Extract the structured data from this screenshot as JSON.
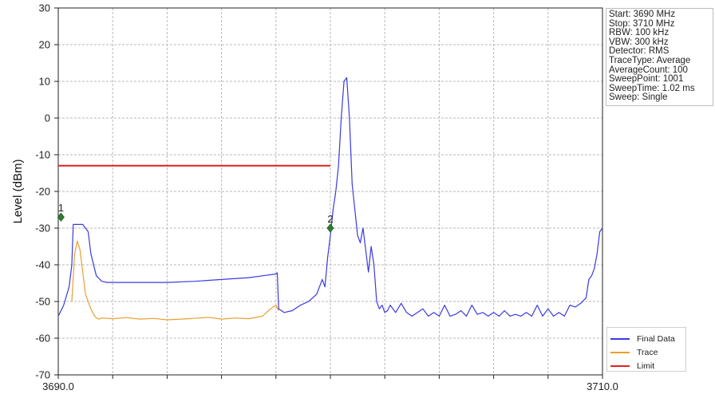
{
  "chart_data": {
    "type": "line",
    "ylabel": "Level (dBm)",
    "xlim": [
      3690.0,
      3710.0
    ],
    "ylim": [
      -70,
      30
    ],
    "x_tick_labels": [
      "3690.0",
      "3710.0"
    ],
    "y_ticks": [
      30,
      20,
      10,
      0,
      -10,
      -20,
      -30,
      -40,
      -50,
      -60,
      -70
    ],
    "grid": true,
    "legend_position": "bottom-right",
    "series": [
      {
        "name": "Final Data",
        "color": "#3a3ae0",
        "x": [
          3690.0,
          3690.2,
          3690.4,
          3690.5,
          3690.55,
          3690.7,
          3690.9,
          3691.1,
          3691.2,
          3691.4,
          3691.6,
          3691.8,
          3692.0,
          3693.0,
          3694.0,
          3695.0,
          3696.0,
          3697.0,
          3697.5,
          3698.0,
          3698.05,
          3698.1,
          3698.3,
          3698.6,
          3698.9,
          3699.2,
          3699.5,
          3699.7,
          3699.8,
          3699.9,
          3700.0,
          3700.1,
          3700.2,
          3700.3,
          3700.4,
          3700.5,
          3700.6,
          3700.7,
          3700.8,
          3700.9,
          3701.0,
          3701.1,
          3701.2,
          3701.3,
          3701.4,
          3701.5,
          3701.6,
          3701.7,
          3701.8,
          3701.9,
          3702.0,
          3702.1,
          3702.2,
          3702.4,
          3702.6,
          3702.8,
          3703.0,
          3703.2,
          3703.4,
          3703.6,
          3703.8,
          3704.0,
          3704.2,
          3704.4,
          3704.6,
          3704.8,
          3705.0,
          3705.2,
          3705.4,
          3705.6,
          3705.8,
          3706.0,
          3706.2,
          3706.4,
          3706.6,
          3706.8,
          3707.0,
          3707.2,
          3707.4,
          3707.6,
          3707.8,
          3708.0,
          3708.2,
          3708.4,
          3708.6,
          3708.8,
          3709.0,
          3709.2,
          3709.4,
          3709.5,
          3709.6,
          3709.7,
          3709.8,
          3709.9,
          3710.0
        ],
        "y": [
          -54,
          -51,
          -46,
          -40,
          -29,
          -29,
          -29,
          -31,
          -37,
          -43,
          -44.5,
          -44.8,
          -44.8,
          -44.8,
          -44.8,
          -44.5,
          -44,
          -43.5,
          -43,
          -42.5,
          -42.2,
          -52,
          -53,
          -52.5,
          -51,
          -50,
          -48,
          -44,
          -46,
          -38,
          -32,
          -25,
          -20,
          -13,
          0,
          10,
          11,
          0,
          -18,
          -25,
          -32,
          -34,
          -30,
          -36,
          -42,
          -35,
          -40,
          -50,
          -52,
          -51,
          -53,
          -52.5,
          -51,
          -53,
          -50.5,
          -53,
          -54,
          -53,
          -52,
          -54,
          -53,
          -54,
          -51,
          -54,
          -53.5,
          -52.5,
          -54,
          -51,
          -53.5,
          -53,
          -54,
          -53,
          -54,
          -52.5,
          -54,
          -53.5,
          -54,
          -53,
          -54,
          -51,
          -54,
          -52,
          -54,
          -53,
          -54,
          -51,
          -51.5,
          -50.5,
          -49,
          -44,
          -43,
          -41,
          -37,
          -31,
          -30
        ]
      },
      {
        "name": "Trace",
        "color": "#e8a030",
        "x": [
          3690.5,
          3690.6,
          3690.7,
          3690.8,
          3690.9,
          3691.0,
          3691.1,
          3691.2,
          3691.3,
          3691.4,
          3691.5,
          3691.6,
          3692.0,
          3692.5,
          3693.0,
          3693.5,
          3694.0,
          3694.5,
          3695.0,
          3695.5,
          3696.0,
          3696.5,
          3697.0,
          3697.5,
          3697.8,
          3698.0,
          3698.1
        ],
        "y": [
          -50,
          -37,
          -33.5,
          -36,
          -42,
          -48,
          -50,
          -52,
          -53.5,
          -54.5,
          -54.8,
          -54.5,
          -54.7,
          -54.4,
          -54.8,
          -54.6,
          -55,
          -54.8,
          -54.6,
          -54.3,
          -54.8,
          -54.5,
          -54.7,
          -54,
          -52,
          -51,
          -52.5
        ]
      },
      {
        "name": "Limit",
        "color": "#e02020",
        "x": [
          3690.0,
          3700.0
        ],
        "y": [
          -13,
          -13
        ]
      }
    ],
    "markers": [
      {
        "label": "1",
        "x": 3690.1,
        "y": -27
      },
      {
        "label": "2",
        "x": 3700.0,
        "y": -30
      }
    ]
  },
  "info_box": [
    "Start: 3690 MHz",
    "Stop: 3710 MHz",
    "RBW: 100 kHz",
    "VBW: 300 kHz",
    "Detector: RMS",
    "TraceType: Average",
    "AverageCount: 100",
    "SweepPoint: 1001",
    "SweepTime: 1.02 ms",
    "Sweep: Single"
  ]
}
